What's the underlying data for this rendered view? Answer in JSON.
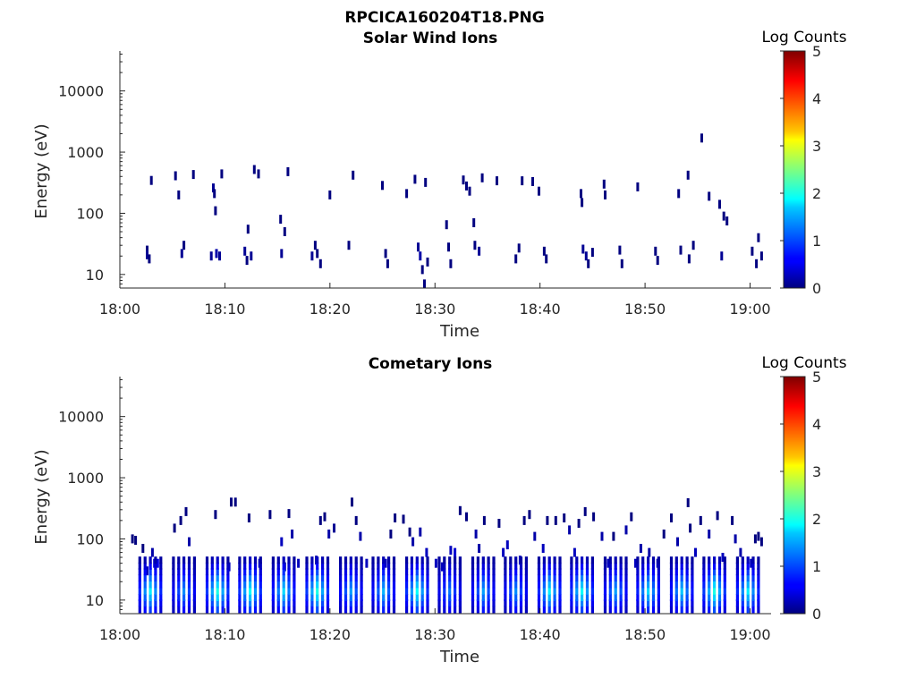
{
  "page_title": "RPCICA160204T18.PNG",
  "chart_data": [
    {
      "type": "heatmap",
      "title": "Solar Wind Ions",
      "xlabel": "Time",
      "ylabel": "Energy (eV)",
      "y_scale": "log",
      "xlim": [
        "18:00",
        "19:02"
      ],
      "ylim": [
        6,
        45000
      ],
      "x_ticks": [
        "18:00",
        "18:10",
        "18:20",
        "18:30",
        "18:40",
        "18:50",
        "19:00"
      ],
      "y_ticks": [
        "10",
        "100",
        "1000",
        "10000"
      ],
      "colorbar": {
        "label": "Log Counts",
        "ticks": [
          "0",
          "1",
          "2",
          "3",
          "4",
          "5"
        ],
        "colormap": "jet",
        "range": [
          0,
          5
        ]
      },
      "cells": [
        [
          2.6,
          25,
          0
        ],
        [
          2.6,
          21,
          0.1
        ],
        [
          2.8,
          18,
          0
        ],
        [
          3.0,
          345,
          0
        ],
        [
          5.3,
          410,
          0
        ],
        [
          5.6,
          200,
          0
        ],
        [
          5.9,
          22,
          0.1
        ],
        [
          6.1,
          30,
          0
        ],
        [
          7.0,
          430,
          0
        ],
        [
          8.7,
          20,
          0.1
        ],
        [
          8.9,
          260,
          0.1
        ],
        [
          9.0,
          210,
          0
        ],
        [
          9.1,
          110,
          0
        ],
        [
          9.2,
          22,
          0.2
        ],
        [
          9.5,
          20,
          0.1
        ],
        [
          9.7,
          440,
          0
        ],
        [
          11.9,
          24,
          0.1
        ],
        [
          12.1,
          17,
          0
        ],
        [
          12.2,
          55,
          0
        ],
        [
          12.5,
          20,
          0.1
        ],
        [
          12.8,
          520,
          0
        ],
        [
          13.2,
          440,
          0
        ],
        [
          15.3,
          80,
          0
        ],
        [
          15.4,
          22,
          0.1
        ],
        [
          15.7,
          50,
          0
        ],
        [
          16.0,
          480,
          0
        ],
        [
          18.3,
          20,
          0.1
        ],
        [
          18.6,
          30,
          0
        ],
        [
          18.8,
          22,
          0
        ],
        [
          19.1,
          15,
          0
        ],
        [
          20.0,
          200,
          0
        ],
        [
          21.8,
          30,
          0
        ],
        [
          22.2,
          420,
          0
        ],
        [
          25.0,
          285,
          0
        ],
        [
          25.3,
          22,
          0
        ],
        [
          25.5,
          15,
          0
        ],
        [
          27.3,
          210,
          0
        ],
        [
          28.1,
          360,
          0
        ],
        [
          28.4,
          28,
          0.1
        ],
        [
          28.6,
          20,
          0.2
        ],
        [
          28.8,
          12,
          0
        ],
        [
          29.0,
          7,
          0
        ],
        [
          29.1,
          320,
          0
        ],
        [
          29.3,
          16,
          0
        ],
        [
          31.1,
          65,
          0
        ],
        [
          31.3,
          28,
          0
        ],
        [
          31.5,
          15,
          0
        ],
        [
          32.7,
          350,
          0
        ],
        [
          33.0,
          280,
          0
        ],
        [
          33.3,
          230,
          0
        ],
        [
          33.7,
          70,
          0
        ],
        [
          33.8,
          30,
          0
        ],
        [
          34.2,
          24,
          0.1
        ],
        [
          34.5,
          380,
          0
        ],
        [
          35.9,
          340,
          0
        ],
        [
          37.7,
          18,
          0
        ],
        [
          38.0,
          27,
          0
        ],
        [
          38.3,
          340,
          0
        ],
        [
          39.3,
          330,
          0
        ],
        [
          39.9,
          230,
          0
        ],
        [
          40.4,
          24,
          0
        ],
        [
          40.6,
          18,
          0
        ],
        [
          43.9,
          210,
          0
        ],
        [
          44.0,
          150,
          0
        ],
        [
          44.1,
          26,
          0.1
        ],
        [
          44.4,
          20,
          0.1
        ],
        [
          44.6,
          15,
          0
        ],
        [
          45.0,
          23,
          0
        ],
        [
          46.1,
          300,
          0
        ],
        [
          46.2,
          200,
          0
        ],
        [
          47.6,
          25,
          0
        ],
        [
          47.8,
          15,
          0
        ],
        [
          49.3,
          270,
          0
        ],
        [
          51.0,
          24,
          0
        ],
        [
          51.2,
          17,
          0
        ],
        [
          53.2,
          210,
          0
        ],
        [
          53.4,
          25,
          0
        ],
        [
          54.1,
          420,
          0
        ],
        [
          54.2,
          18,
          0
        ],
        [
          54.6,
          30,
          0
        ],
        [
          55.4,
          1700,
          0
        ],
        [
          56.1,
          190,
          0
        ],
        [
          57.1,
          140,
          0
        ],
        [
          57.3,
          20,
          0.1
        ],
        [
          57.5,
          90,
          0
        ],
        [
          57.8,
          75,
          0
        ],
        [
          60.2,
          24,
          0
        ],
        [
          60.6,
          15,
          0
        ],
        [
          60.8,
          40,
          0
        ],
        [
          61.1,
          20,
          0
        ]
      ]
    },
    {
      "type": "heatmap",
      "title": "Cometary Ions",
      "xlabel": "Time",
      "ylabel": "Energy (eV)",
      "y_scale": "log",
      "xlim": [
        "18:00",
        "19:02"
      ],
      "ylim": [
        6,
        45000
      ],
      "x_ticks": [
        "18:00",
        "18:10",
        "18:20",
        "18:30",
        "18:40",
        "18:50",
        "19:00"
      ],
      "y_ticks": [
        "10",
        "100",
        "1000",
        "10000"
      ],
      "colorbar": {
        "label": "Log Counts",
        "ticks": [
          "0",
          "1",
          "2",
          "3",
          "4",
          "5"
        ],
        "colormap": "jet",
        "range": [
          0,
          5
        ]
      },
      "burst_times": [
        2.9,
        6.1,
        9.3,
        12.4,
        15.6,
        18.8,
        22.0,
        25.1,
        28.3,
        31.4,
        34.6,
        37.7,
        40.9,
        44.0,
        47.2,
        50.3,
        53.5,
        56.6,
        59.8
      ],
      "burst_counts": [
        1.8,
        1.3,
        2.0,
        1.9,
        1.7,
        2.0,
        1.4,
        1.5,
        1.9,
        1.2,
        1.4,
        1.3,
        1.8,
        1.9,
        1.4,
        1.7,
        1.6,
        2.0,
        1.8
      ],
      "cells": [
        [
          1.2,
          100,
          0
        ],
        [
          1.5,
          95,
          0
        ],
        [
          2.2,
          70,
          0
        ],
        [
          2.6,
          30,
          0.3
        ],
        [
          3.1,
          60,
          0.2
        ],
        [
          3.3,
          40,
          0.4
        ],
        [
          3.6,
          40,
          0.5
        ],
        [
          5.2,
          150,
          0
        ],
        [
          5.8,
          200,
          0
        ],
        [
          6.3,
          280,
          0
        ],
        [
          6.6,
          90,
          0.2
        ],
        [
          9.1,
          250,
          0
        ],
        [
          10.4,
          35,
          0.3
        ],
        [
          10.6,
          400,
          0
        ],
        [
          11.0,
          400,
          0
        ],
        [
          12.3,
          220,
          0
        ],
        [
          12.9,
          35,
          0.3
        ],
        [
          13.3,
          40,
          0.4
        ],
        [
          14.3,
          250,
          0
        ],
        [
          15.4,
          90,
          0.3
        ],
        [
          15.7,
          35,
          0.2
        ],
        [
          16.1,
          260,
          0
        ],
        [
          16.4,
          120,
          0.2
        ],
        [
          17.0,
          40,
          0.3
        ],
        [
          18.7,
          45,
          0.2
        ],
        [
          19.1,
          200,
          0
        ],
        [
          19.5,
          230,
          0
        ],
        [
          19.9,
          120,
          0.2
        ],
        [
          20.4,
          150,
          0.1
        ],
        [
          22.1,
          400,
          0
        ],
        [
          22.5,
          200,
          0
        ],
        [
          22.9,
          110,
          0.2
        ],
        [
          23.5,
          40,
          0.3
        ],
        [
          25.3,
          40,
          0.3
        ],
        [
          25.8,
          120,
          0
        ],
        [
          26.2,
          220,
          0
        ],
        [
          27.0,
          210,
          0
        ],
        [
          27.6,
          130,
          0
        ],
        [
          27.9,
          90,
          0.2
        ],
        [
          28.6,
          130,
          0.2
        ],
        [
          29.2,
          60,
          0.3
        ],
        [
          30.1,
          40,
          0.3
        ],
        [
          30.7,
          35,
          0.3
        ],
        [
          31.5,
          65,
          0.3
        ],
        [
          31.9,
          60,
          0.4
        ],
        [
          32.4,
          290,
          0
        ],
        [
          33.0,
          230,
          0
        ],
        [
          33.9,
          120,
          0.2
        ],
        [
          34.2,
          70,
          0.2
        ],
        [
          34.7,
          200,
          0
        ],
        [
          36.1,
          180,
          0
        ],
        [
          36.5,
          60,
          0.3
        ],
        [
          36.9,
          80,
          0.3
        ],
        [
          38.1,
          45,
          0.3
        ],
        [
          38.5,
          200,
          0
        ],
        [
          39.0,
          250,
          0
        ],
        [
          39.5,
          110,
          0.2
        ],
        [
          40.3,
          70,
          0.3
        ],
        [
          40.7,
          200,
          0
        ],
        [
          41.5,
          200,
          0
        ],
        [
          42.3,
          220,
          0
        ],
        [
          42.8,
          140,
          0.2
        ],
        [
          43.3,
          60,
          0.3
        ],
        [
          43.7,
          180,
          0
        ],
        [
          44.3,
          280,
          0
        ],
        [
          45.1,
          230,
          0
        ],
        [
          45.9,
          110,
          0.2
        ],
        [
          46.5,
          40,
          0.3
        ],
        [
          47.0,
          110,
          0
        ],
        [
          48.2,
          140,
          0.2
        ],
        [
          48.7,
          230,
          0
        ],
        [
          49.1,
          40,
          0.3
        ],
        [
          49.6,
          70,
          0.2
        ],
        [
          50.4,
          60,
          0.2
        ],
        [
          51.2,
          40,
          0.3
        ],
        [
          51.8,
          120,
          0
        ],
        [
          52.5,
          220,
          0
        ],
        [
          53.1,
          90,
          0.2
        ],
        [
          54.1,
          390,
          0
        ],
        [
          54.3,
          150,
          0
        ],
        [
          54.8,
          60,
          0.3
        ],
        [
          55.3,
          200,
          0
        ],
        [
          56.1,
          120,
          0.2
        ],
        [
          56.9,
          240,
          0
        ],
        [
          57.4,
          50,
          0.3
        ],
        [
          58.3,
          200,
          0
        ],
        [
          58.6,
          100,
          0.2
        ],
        [
          59.1,
          60,
          0.2
        ],
        [
          60.1,
          40,
          0.3
        ],
        [
          60.5,
          100,
          0
        ],
        [
          60.8,
          110,
          0
        ],
        [
          61.1,
          90,
          0
        ]
      ]
    }
  ]
}
